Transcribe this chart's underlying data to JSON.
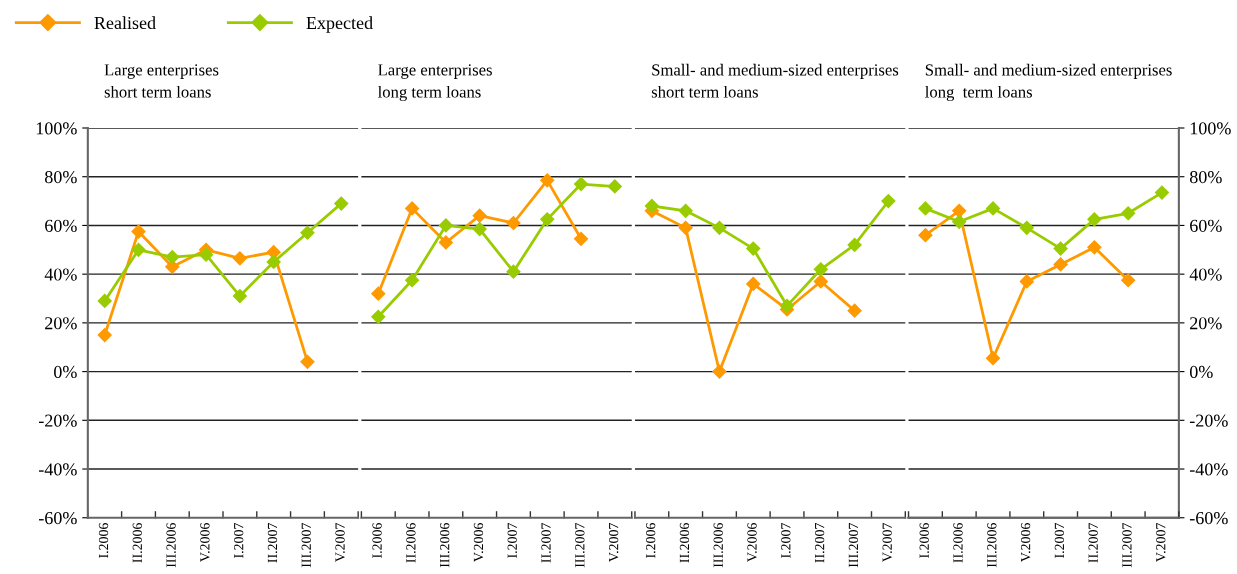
{
  "chart_data": [
    {
      "type": "line",
      "title": "Large enterprises\nshort term loans",
      "categories": [
        "I.2006",
        "II.2006",
        "III.2006",
        "V.2006",
        "I.2007",
        "II.2007",
        "III.2007",
        "V.2007"
      ],
      "series": [
        {
          "name": "Realised",
          "color": "#ff9900",
          "values": [
            15,
            57.5,
            43,
            50,
            46.5,
            49,
            4,
            null
          ]
        },
        {
          "name": "Expected",
          "color": "#99cc00",
          "values": [
            29,
            50,
            47,
            48,
            31,
            45,
            57,
            69
          ]
        }
      ],
      "ylim": [
        -60,
        100
      ],
      "yticks": [
        {
          "value": -60,
          "label": "-60%"
        },
        {
          "value": -40,
          "label": "-40%"
        },
        {
          "value": -20,
          "label": "-20%"
        },
        {
          "value": 0,
          "label": "0%"
        },
        {
          "value": 20,
          "label": "20%"
        },
        {
          "value": 40,
          "label": "40%"
        },
        {
          "value": 60,
          "label": "60%"
        },
        {
          "value": 80,
          "label": "80%"
        },
        {
          "value": 100,
          "label": "100%"
        }
      ],
      "grid": "y",
      "legend": "top left",
      "marker": "diamond",
      "line_style": "solid"
    },
    {
      "type": "line",
      "title": "Large enterprises\nlong term loans",
      "categories": [
        "I.2006",
        "II.2006",
        "III.2006",
        "V.2006",
        "I.2007",
        "II.2007",
        "III.2007",
        "V.2007"
      ],
      "series": [
        {
          "name": "Realised",
          "color": "#ff9900",
          "values": [
            32,
            67,
            53,
            64,
            61,
            78.5,
            54.5,
            null
          ]
        },
        {
          "name": "Expected",
          "color": "#99cc00",
          "values": [
            22.5,
            37.5,
            60,
            58.5,
            41,
            62.5,
            77,
            76
          ]
        }
      ],
      "ylim": [
        -60,
        100
      ],
      "yticks": [
        -60,
        -40,
        -20,
        0,
        20,
        40,
        60,
        80,
        100
      ],
      "tick_labels": "x",
      "grid": "y",
      "marker": "diamond",
      "line_style": "solid"
    },
    {
      "type": "line",
      "title": "Small- and medium-sized enterprises\nshort term loans",
      "categories": [
        "I.2006",
        "II.2006",
        "III.2006",
        "V.2006",
        "I.2007",
        "II.2007",
        "III.2007",
        "V.2007"
      ],
      "series": [
        {
          "name": "Realised",
          "color": "#ff9900",
          "values": [
            66,
            59,
            0,
            36,
            25.5,
            37,
            25,
            null
          ]
        },
        {
          "name": "Expected",
          "color": "#99cc00",
          "values": [
            68,
            66,
            59,
            50.5,
            27,
            42,
            52,
            70
          ]
        }
      ],
      "ylim": [
        -60,
        100
      ],
      "yticks": [
        -60,
        -40,
        -20,
        0,
        20,
        40,
        60,
        80,
        100
      ],
      "tick_labels": "x",
      "grid": "y",
      "marker": "diamond",
      "line_style": "solid"
    },
    {
      "type": "line",
      "title": "Small- and medium-sized enterprises\nlong  term loans",
      "categories": [
        "I.2006",
        "II.2006",
        "III.2006",
        "V.2006",
        "I.2007",
        "II.2007",
        "III.2007",
        "V.2007"
      ],
      "series": [
        {
          "name": "Realised",
          "color": "#ff9900",
          "axis": "y2",
          "values": [
            56,
            66,
            5.5,
            37,
            44,
            51,
            37.5,
            null
          ]
        },
        {
          "name": "Expected",
          "color": "#99cc00",
          "axis": "y2",
          "values": [
            67,
            61.5,
            67,
            59,
            50.5,
            62.5,
            65,
            73.5
          ]
        }
      ],
      "y2lim": [
        -60,
        100
      ],
      "y2ticks": [
        {
          "value": -60,
          "label": "-60%"
        },
        {
          "value": -40,
          "label": "-40%"
        },
        {
          "value": -20,
          "label": "-20%"
        },
        {
          "value": 0,
          "label": "0%"
        },
        {
          "value": 20,
          "label": "20%"
        },
        {
          "value": 40,
          "label": "40%"
        },
        {
          "value": 60,
          "label": "60%"
        },
        {
          "value": 80,
          "label": "80%"
        },
        {
          "value": 100,
          "label": "100%"
        }
      ],
      "grid": "y",
      "marker": "diamond",
      "line_style": "solid"
    }
  ]
}
